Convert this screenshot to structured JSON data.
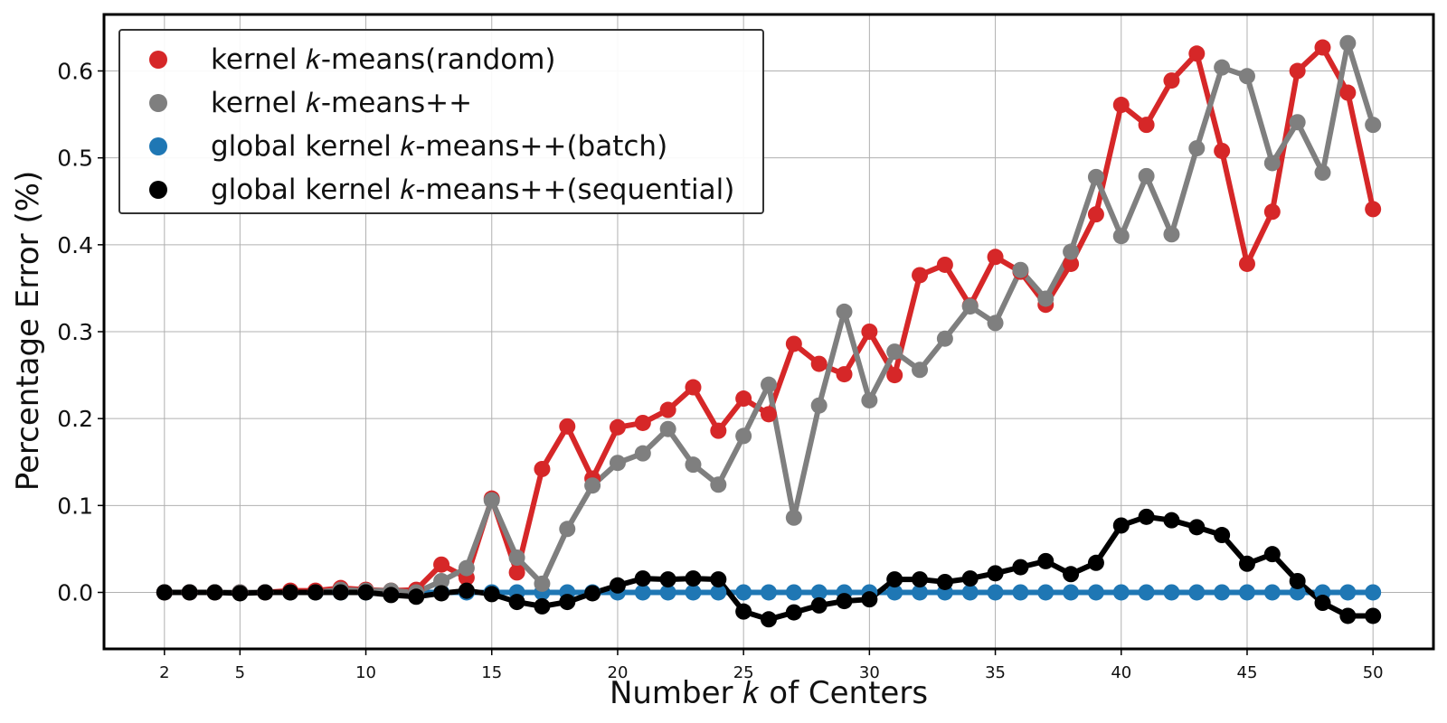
{
  "chart_data": {
    "type": "line",
    "xlabel": "Number k of Centers",
    "ylabel": "Percentage Error (%)",
    "xlim": [
      -0.4,
      52.4
    ],
    "ylim": [
      -0.065,
      0.665
    ],
    "xticks": [
      2,
      5,
      10,
      15,
      20,
      25,
      30,
      35,
      40,
      45,
      50
    ],
    "yticks": [
      0.0,
      0.1,
      0.2,
      0.3,
      0.4,
      0.5,
      0.6
    ],
    "grid": true,
    "legend_position": "top-left",
    "x": [
      2,
      3,
      4,
      5,
      6,
      7,
      8,
      9,
      10,
      11,
      12,
      13,
      14,
      15,
      16,
      17,
      18,
      19,
      20,
      21,
      22,
      23,
      24,
      25,
      26,
      27,
      28,
      29,
      30,
      31,
      32,
      33,
      34,
      35,
      36,
      37,
      38,
      39,
      40,
      41,
      42,
      43,
      44,
      45,
      46,
      47,
      48,
      49,
      50
    ],
    "series": [
      {
        "name": "kernel k-means(random)",
        "color": "#d62728",
        "values": [
          0.0,
          0.0,
          0.0,
          0.0,
          0.0,
          0.002,
          0.002,
          0.005,
          0.003,
          0.002,
          0.003,
          0.032,
          0.017,
          0.108,
          0.023,
          0.142,
          0.191,
          0.131,
          0.19,
          0.195,
          0.21,
          0.236,
          0.186,
          0.223,
          0.205,
          0.286,
          0.263,
          0.251,
          0.3,
          0.25,
          0.365,
          0.377,
          0.33,
          0.386,
          0.369,
          0.331,
          0.378,
          0.435,
          0.561,
          0.538,
          0.589,
          0.62,
          0.508,
          0.378,
          0.438,
          0.6,
          0.627,
          0.575,
          0.441
        ]
      },
      {
        "name": "kernel k-means++",
        "color": "#7f7f7f",
        "values": [
          0.0,
          0.0,
          0.0,
          0.0,
          0.0,
          0.0,
          0.0,
          0.003,
          0.002,
          0.002,
          0.0,
          0.013,
          0.028,
          0.106,
          0.04,
          0.01,
          0.073,
          0.123,
          0.149,
          0.16,
          0.188,
          0.147,
          0.124,
          0.18,
          0.239,
          0.086,
          0.215,
          0.323,
          0.221,
          0.277,
          0.256,
          0.292,
          0.329,
          0.31,
          0.371,
          0.338,
          0.392,
          0.478,
          0.41,
          0.479,
          0.412,
          0.511,
          0.604,
          0.594,
          0.494,
          0.541,
          0.483,
          0.632,
          0.538
        ]
      },
      {
        "name": "global kernel k-means++(batch)",
        "color": "#1f77b4",
        "values": [
          0.0,
          0.0,
          0.0,
          0.0,
          0.0,
          0.0,
          0.0,
          0.0,
          0.0,
          0.0,
          0.0,
          0.0,
          0.0,
          0.0,
          0.0,
          0.0,
          0.0,
          0.0,
          0.0,
          0.0,
          0.0,
          0.0,
          0.0,
          0.0,
          0.0,
          0.0,
          0.0,
          0.0,
          0.0,
          0.0,
          0.0,
          0.0,
          0.0,
          0.0,
          0.0,
          0.0,
          0.0,
          0.0,
          0.0,
          0.0,
          0.0,
          0.0,
          0.0,
          0.0,
          0.0,
          0.0,
          0.0,
          0.0,
          0.0
        ]
      },
      {
        "name": "global kernel k-means++(sequential)",
        "color": "#000000",
        "values": [
          0.0,
          0.0,
          0.0,
          -0.001,
          0.0,
          0.0,
          0.0,
          0.0,
          0.0,
          -0.003,
          -0.005,
          -0.001,
          0.002,
          -0.002,
          -0.011,
          -0.016,
          -0.011,
          -0.001,
          0.008,
          0.016,
          0.015,
          0.016,
          0.015,
          -0.022,
          -0.031,
          -0.023,
          -0.015,
          -0.01,
          -0.008,
          0.015,
          0.015,
          0.012,
          0.016,
          0.022,
          0.029,
          0.036,
          0.021,
          0.034,
          0.077,
          0.087,
          0.083,
          0.075,
          0.066,
          0.033,
          0.044,
          0.013,
          -0.012,
          -0.027,
          -0.027
        ]
      }
    ]
  },
  "legend": {
    "items": [
      {
        "label": "kernel 𝑘-means(random)",
        "color": "#d62728"
      },
      {
        "label": "kernel 𝑘-means++",
        "color": "#7f7f7f"
      },
      {
        "label": "global kernel 𝑘-means++(batch)",
        "color": "#1f77b4"
      },
      {
        "label": "global kernel 𝑘-means++(sequential)",
        "color": "#000000"
      }
    ]
  },
  "axes": {
    "xlabel_display": "Number 𝑘 of Centers",
    "ylabel_display": "Percentage Error (%)"
  }
}
